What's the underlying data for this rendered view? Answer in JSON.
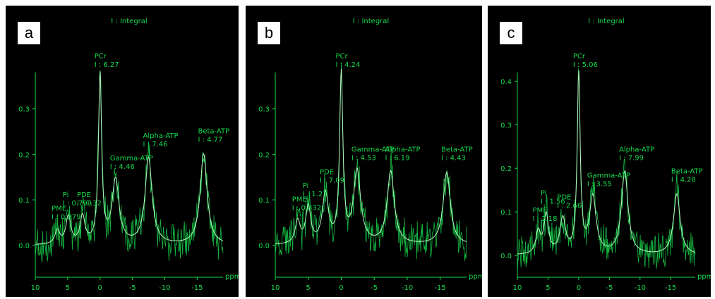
{
  "chart_data": [
    {
      "type": "line",
      "panel_label": "a",
      "title": "I : Integral",
      "xlabel": "ppm",
      "ylabel": "",
      "xlim": [
        10,
        -19
      ],
      "ylim": [
        -0.07,
        0.38
      ],
      "x_ticks": [
        10,
        5,
        0,
        -5,
        -10,
        -15
      ],
      "x_tick_labels": [
        "10",
        "5",
        "0",
        "-5",
        "-10",
        "-15"
      ],
      "y_ticks": [
        0.0,
        0.1,
        0.2,
        0.3
      ],
      "y_tick_labels": [
        "0.0",
        "0.1",
        "0.2",
        "0.3"
      ],
      "series_color": "#19d84d",
      "peaks": [
        {
          "name": "PME",
          "integral_label": "I : 0.279",
          "ppm": 6.6,
          "height": 0.03,
          "width": 0.45
        },
        {
          "name": "Pi",
          "integral_label": "I : 0.799",
          "ppm": 4.9,
          "height": 0.06,
          "width": 0.45
        },
        {
          "name": "PDE",
          "integral_label": "I : 1.32",
          "ppm": 2.7,
          "height": 0.06,
          "width": 0.45
        },
        {
          "name": "PCr",
          "integral_label": "I : 6.27",
          "ppm": 0.0,
          "height": 0.37,
          "width": 0.3
        },
        {
          "name": "Gamma-ATP",
          "integral_label": "I : 4.46",
          "ppm": -2.4,
          "height": 0.14,
          "width": 0.65
        },
        {
          "name": "Alpha-ATP",
          "integral_label": "I : 7.46",
          "ppm": -7.5,
          "height": 0.19,
          "width": 0.65
        },
        {
          "name": "Beta-ATP",
          "integral_label": "I : 4.77",
          "ppm": -16.0,
          "height": 0.2,
          "width": 0.65
        }
      ]
    },
    {
      "type": "line",
      "panel_label": "b",
      "title": "I : Integral",
      "xlabel": "ppm",
      "ylabel": "",
      "xlim": [
        10,
        -19
      ],
      "ylim": [
        -0.07,
        0.38
      ],
      "x_ticks": [
        10,
        5,
        0,
        -5,
        -10,
        -15
      ],
      "x_tick_labels": [
        "10",
        "5",
        "0",
        "-5",
        "-10",
        "-15"
      ],
      "y_ticks": [
        0.0,
        0.1,
        0.2,
        0.3
      ],
      "y_tick_labels": [
        "0.0",
        "0.1",
        "0.2",
        "0.3"
      ],
      "series_color": "#19d84d",
      "peaks": [
        {
          "name": "PME",
          "integral_label": "I : 0.832",
          "ppm": 6.6,
          "height": 0.05,
          "width": 0.45
        },
        {
          "name": "Pi",
          "integral_label": "I : 1.23",
          "ppm": 5.0,
          "height": 0.08,
          "width": 0.45
        },
        {
          "name": "PDE",
          "integral_label": "I : 7.09",
          "ppm": 2.4,
          "height": 0.11,
          "width": 0.55
        },
        {
          "name": "PCr",
          "integral_label": "I : 4.24",
          "ppm": 0.0,
          "height": 0.37,
          "width": 0.3
        },
        {
          "name": "Gamma-ATP",
          "integral_label": "I : 4.53",
          "ppm": -2.4,
          "height": 0.16,
          "width": 0.65
        },
        {
          "name": "Alpha-ATP",
          "integral_label": "I : 6.19",
          "ppm": -7.5,
          "height": 0.16,
          "width": 0.65
        },
        {
          "name": "Beta-ATP",
          "integral_label": "I : 4.43",
          "ppm": -16.0,
          "height": 0.16,
          "width": 0.65
        }
      ]
    },
    {
      "type": "line",
      "panel_label": "c",
      "title": "I : Integral",
      "xlabel": "ppm",
      "ylabel": "",
      "xlim": [
        10,
        -19
      ],
      "ylim": [
        -0.05,
        0.42
      ],
      "x_ticks": [
        10,
        5,
        0,
        -5,
        -10,
        -15
      ],
      "x_tick_labels": [
        "10",
        "5",
        "0",
        "-5",
        "-10",
        "-15"
      ],
      "y_ticks": [
        0.0,
        0.1,
        0.2,
        0.3,
        0.4
      ],
      "y_tick_labels": [
        "0.0",
        "0.1",
        "0.2",
        "0.3",
        "0.4"
      ],
      "series_color": "#19d84d",
      "peaks": [
        {
          "name": "PME",
          "integral_label": "I : 2.18",
          "ppm": 6.6,
          "height": 0.05,
          "width": 0.45
        },
        {
          "name": "Pi",
          "integral_label": "I : 1.56",
          "ppm": 5.3,
          "height": 0.09,
          "width": 0.45
        },
        {
          "name": "PDE",
          "integral_label": "I : 2.66",
          "ppm": 2.6,
          "height": 0.08,
          "width": 0.55
        },
        {
          "name": "PCr",
          "integral_label": "I : 5.06",
          "ppm": 0.0,
          "height": 0.41,
          "width": 0.3
        },
        {
          "name": "Gamma-ATP",
          "integral_label": "I : 3.55",
          "ppm": -2.3,
          "height": 0.13,
          "width": 0.65
        },
        {
          "name": "Alpha-ATP",
          "integral_label": "I : 7.99",
          "ppm": -7.5,
          "height": 0.19,
          "width": 0.65
        },
        {
          "name": "Beta-ATP",
          "integral_label": "I : 4.28",
          "ppm": -16.0,
          "height": 0.14,
          "width": 0.65
        }
      ]
    }
  ]
}
